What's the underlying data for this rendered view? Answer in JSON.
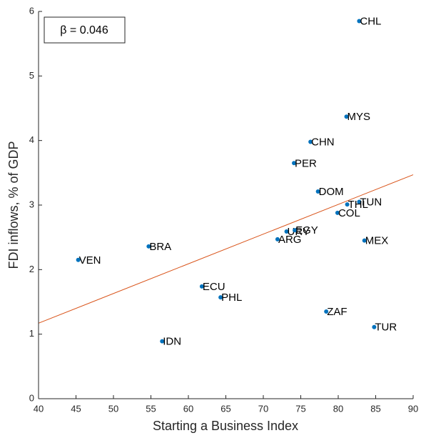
{
  "chart_data": {
    "type": "scatter",
    "xlabel": "Starting a Business Index",
    "ylabel": "FDI inflows, % of GDP",
    "annotation": "β = 0.046",
    "series": [
      {
        "color": "#0072bd",
        "labels": [
          "CHL",
          "MYS",
          "CHN",
          "PER",
          "DOM",
          "TUN",
          "THL",
          "COL",
          "URY",
          "EGY",
          "ARG",
          "MEX",
          "BRA",
          "VEN",
          "ECU",
          "PHL",
          "ZAF",
          "TUR",
          "IDN"
        ],
        "x": [
          82.8,
          81.1,
          76.3,
          74.1,
          77.3,
          82.8,
          81.2,
          79.9,
          73.1,
          74.2,
          71.9,
          83.5,
          54.7,
          45.3,
          61.8,
          64.3,
          78.4,
          84.8,
          56.5
        ],
        "values": [
          5.85,
          4.37,
          3.98,
          3.65,
          3.21,
          3.05,
          3.01,
          2.88,
          2.59,
          2.61,
          2.47,
          2.45,
          2.36,
          2.15,
          1.74,
          1.57,
          1.35,
          1.11,
          0.89
        ]
      }
    ],
    "fit": {
      "color": "#d95319",
      "x": [
        40,
        90
      ],
      "values": [
        1.17,
        3.47
      ]
    },
    "xlim": [
      40,
      90
    ],
    "xticks": [
      40,
      45,
      50,
      55,
      60,
      65,
      70,
      75,
      80,
      85,
      90
    ],
    "ylim": [
      0,
      6
    ],
    "yticks": [
      0,
      1,
      2,
      3,
      4,
      5,
      6
    ]
  }
}
